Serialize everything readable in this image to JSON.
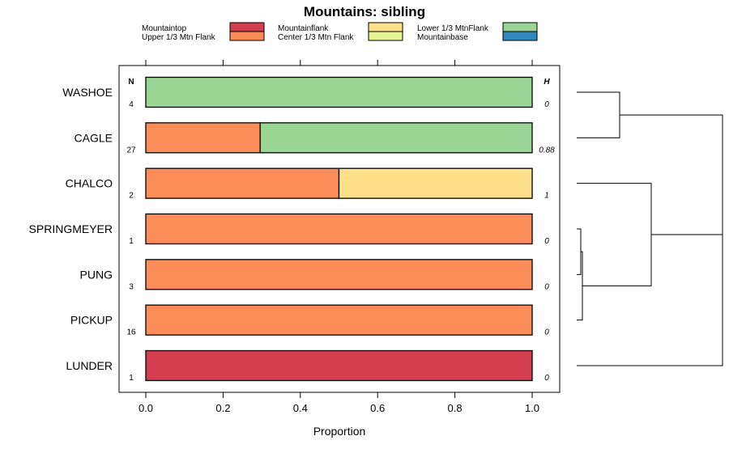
{
  "chart_data": {
    "type": "bar",
    "orientation": "horizontal",
    "stacked": true,
    "title": "Mountains: sibling",
    "xlabel": "Proportion",
    "xlim": [
      0,
      1
    ],
    "xticks": [
      "0.0",
      "0.2",
      "0.4",
      "0.6",
      "0.8",
      "1.0"
    ],
    "column_headers": {
      "n": "N",
      "h": "H"
    },
    "legend": [
      {
        "name": "Mountaintop",
        "color": "#D53E4F"
      },
      {
        "name": "Upper 1/3 Mtn Flank",
        "color": "#FC8D59"
      },
      {
        "name": "Mountainflank",
        "color": "#FEE08B"
      },
      {
        "name": "Center 1/3 Mtn Flank",
        "color": "#E6F598"
      },
      {
        "name": "Lower 1/3 MtnFlank",
        "color": "#99D594"
      },
      {
        "name": "Mountainbase",
        "color": "#3288BD"
      }
    ],
    "categories": [
      "WASHOE",
      "CAGLE",
      "CHALCO",
      "SPRINGMEYER",
      "PUNG",
      "PICKUP",
      "LUNDER"
    ],
    "n": [
      "4",
      "27",
      "2",
      "1",
      "3",
      "16",
      "1"
    ],
    "h": [
      "0",
      "0.88",
      "1",
      "0",
      "0",
      "0",
      "0"
    ],
    "series": [
      {
        "name": "Mountaintop",
        "values": [
          0,
          0,
          0,
          0,
          0,
          0,
          1.0
        ]
      },
      {
        "name": "Upper 1/3 Mtn Flank",
        "values": [
          0,
          0.296,
          0.5,
          1.0,
          1.0,
          1.0,
          0
        ]
      },
      {
        "name": "Mountainflank",
        "values": [
          0,
          0,
          0.5,
          0,
          0,
          0,
          0
        ]
      },
      {
        "name": "Center 1/3 Mtn Flank",
        "values": [
          0,
          0,
          0,
          0,
          0,
          0,
          0
        ]
      },
      {
        "name": "Lower 1/3 MtnFlank",
        "values": [
          1.0,
          0.704,
          0,
          0,
          0,
          0,
          0
        ]
      },
      {
        "name": "Mountainbase",
        "values": [
          0,
          0,
          0,
          0,
          0,
          0,
          0
        ]
      }
    ]
  }
}
